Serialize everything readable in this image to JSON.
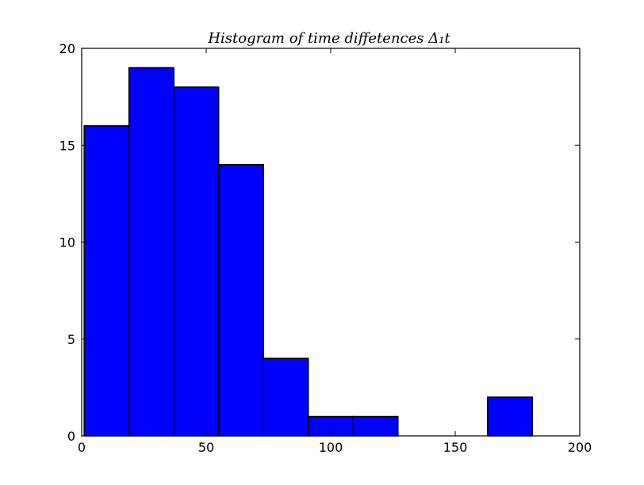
{
  "chart_data": {
    "type": "bar",
    "title": "Histogram of time diffetences Δ₁t",
    "xlabel": "",
    "ylabel": "",
    "xlim": [
      0,
      200
    ],
    "ylim": [
      0,
      20
    ],
    "x_ticks": [
      0,
      50,
      100,
      150,
      200
    ],
    "y_ticks": [
      0,
      5,
      10,
      15,
      20
    ],
    "grid": false,
    "legend": "none",
    "bin_edges": [
      1,
      19,
      37,
      55,
      73,
      91,
      109,
      127,
      145,
      163,
      181
    ],
    "counts": [
      16,
      19,
      18,
      14,
      4,
      1,
      1,
      0,
      0,
      2
    ],
    "colors": {
      "bar_fill": "#0000ff",
      "bar_edge": "#000000",
      "axis": "#000000",
      "background": "#ffffff"
    }
  }
}
